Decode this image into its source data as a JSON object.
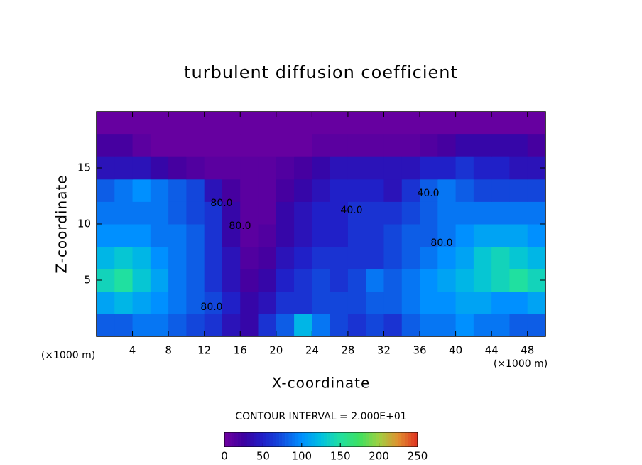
{
  "chart_data": {
    "type": "heatmap",
    "title": "turbulent diffusion coefficient",
    "xlabel": "X-coordinate",
    "ylabel": "Z-coordinate",
    "x_unit": "(×1000 m)",
    "y_unit": "(×1000 m)",
    "x": [
      0,
      2,
      4,
      6,
      8,
      10,
      12,
      14,
      16,
      18,
      20,
      22,
      24,
      26,
      28,
      30,
      32,
      34,
      36,
      38,
      40,
      42,
      44,
      46,
      48,
      50
    ],
    "y": [
      0,
      2,
      4,
      6,
      8,
      10,
      12,
      14,
      16,
      18,
      20
    ],
    "values": [
      [
        80,
        80,
        90,
        90,
        80,
        70,
        60,
        40,
        30,
        60,
        80,
        120,
        90,
        70,
        60,
        70,
        60,
        80,
        90,
        90,
        100,
        90,
        90,
        80,
        80
      ],
      [
        110,
        120,
        110,
        100,
        90,
        80,
        70,
        50,
        30,
        40,
        60,
        60,
        70,
        70,
        70,
        80,
        80,
        90,
        100,
        100,
        110,
        110,
        100,
        100,
        110
      ],
      [
        140,
        150,
        130,
        110,
        90,
        80,
        60,
        40,
        20,
        30,
        50,
        60,
        70,
        60,
        70,
        90,
        80,
        90,
        100,
        110,
        120,
        130,
        140,
        150,
        140
      ],
      [
        120,
        130,
        120,
        100,
        90,
        80,
        60,
        40,
        15,
        20,
        40,
        50,
        60,
        60,
        60,
        60,
        70,
        80,
        90,
        100,
        110,
        130,
        140,
        130,
        120
      ],
      [
        100,
        100,
        100,
        90,
        90,
        80,
        60,
        30,
        10,
        15,
        30,
        40,
        50,
        50,
        60,
        60,
        70,
        80,
        80,
        90,
        100,
        110,
        110,
        110,
        100
      ],
      [
        90,
        90,
        90,
        90,
        80,
        70,
        60,
        30,
        10,
        10,
        30,
        40,
        50,
        50,
        60,
        60,
        60,
        70,
        80,
        90,
        90,
        90,
        90,
        90,
        90
      ],
      [
        80,
        90,
        100,
        90,
        80,
        70,
        40,
        20,
        10,
        10,
        20,
        30,
        40,
        50,
        50,
        50,
        40,
        60,
        80,
        90,
        80,
        70,
        70,
        70,
        70
      ],
      [
        40,
        40,
        40,
        30,
        20,
        15,
        10,
        10,
        10,
        10,
        15,
        20,
        30,
        40,
        40,
        40,
        40,
        40,
        50,
        50,
        60,
        50,
        50,
        40,
        40
      ],
      [
        20,
        20,
        10,
        5,
        5,
        5,
        5,
        5,
        5,
        5,
        5,
        5,
        10,
        10,
        10,
        10,
        10,
        10,
        15,
        20,
        30,
        30,
        30,
        30,
        20
      ],
      [
        5,
        5,
        5,
        5,
        5,
        5,
        5,
        5,
        5,
        5,
        5,
        5,
        5,
        5,
        5,
        5,
        5,
        5,
        5,
        5,
        5,
        5,
        5,
        5,
        5
      ]
    ],
    "xlim": [
      0,
      50
    ],
    "xticks": [
      4,
      8,
      12,
      16,
      20,
      24,
      28,
      32,
      36,
      40,
      44,
      48
    ],
    "ylim": [
      0,
      20
    ],
    "yticks": [
      5,
      10,
      15
    ],
    "clim": [
      0,
      250
    ],
    "cticks": [
      0,
      50,
      100,
      150,
      200,
      250
    ],
    "colors": [
      "#7000a0",
      "#3c00a0",
      "#2020c8",
      "#1050e0",
      "#0090ff",
      "#00c0e0",
      "#20e0a0",
      "#40e060",
      "#a0d040",
      "#e09030",
      "#e03020"
    ],
    "contour_note": "CONTOUR INTERVAL = 2.000E+01",
    "annotations": [
      "80.0",
      "80.0",
      "80.0",
      "40.0",
      "40.0",
      "80.0"
    ]
  }
}
